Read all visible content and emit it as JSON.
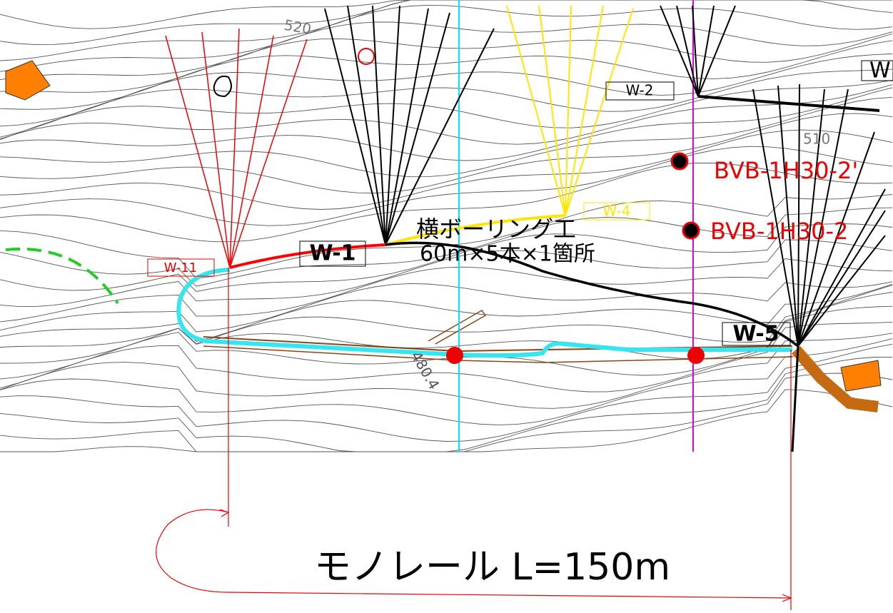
{
  "contour_labels": [
    "520",
    "510",
    "480.4"
  ],
  "boxes": [
    "W-11",
    "W-1",
    "W-2",
    "W-4",
    "W-5",
    "W"
  ],
  "boreholes": [
    "BVB-1H30-2'",
    "BVB-1H30-2"
  ],
  "annotation": {
    "line1": "横ボーリング工",
    "line2": "60m×5本×1箇所"
  },
  "monorail": "モノレール L=150m"
}
